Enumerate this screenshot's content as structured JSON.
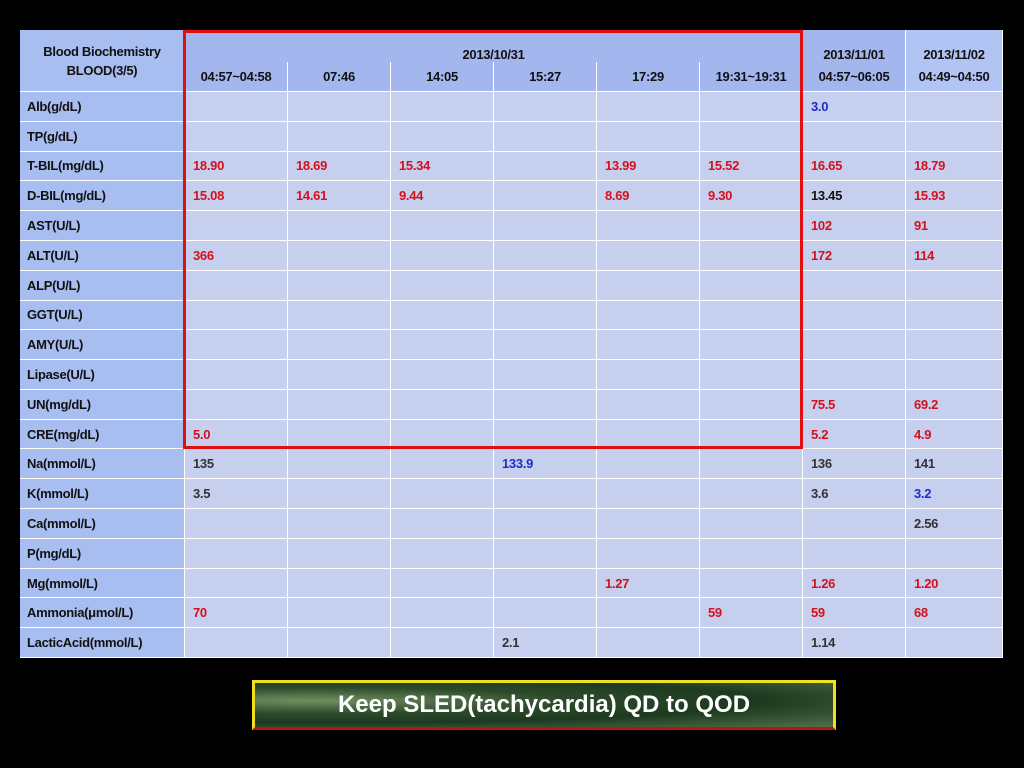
{
  "table": {
    "corner": [
      "Blood Biochemistry",
      "BLOOD(3/5)"
    ],
    "dates": [
      {
        "text": "2013/10/31",
        "span": 6
      },
      {
        "text": "2013/11/01",
        "span": 1
      },
      {
        "text": "2013/11/02",
        "span": 1
      }
    ],
    "times": [
      "04:57~04:58",
      "07:46",
      "14:05",
      "15:27",
      "17:29",
      "19:31~19:31",
      "04:57~06:05",
      "04:49~04:50"
    ],
    "rows": [
      {
        "label": "Alb(g/dL)",
        "cells": [
          null,
          null,
          null,
          null,
          null,
          null,
          {
            "text": "3.0",
            "color": "#1c2fc8"
          },
          null
        ]
      },
      {
        "label": "TP(g/dL)",
        "cells": [
          null,
          null,
          null,
          null,
          null,
          null,
          null,
          null
        ]
      },
      {
        "label": "T-BIL(mg/dL)",
        "cells": [
          {
            "text": "18.90",
            "color": "#d4101c"
          },
          {
            "text": "18.69",
            "color": "#d4101c"
          },
          {
            "text": "15.34",
            "color": "#d4101c"
          },
          null,
          {
            "text": "13.99",
            "color": "#d4101c"
          },
          {
            "text": "15.52",
            "color": "#d4101c"
          },
          {
            "text": "16.65",
            "color": "#d4101c"
          },
          {
            "text": "18.79",
            "color": "#d4101c"
          }
        ]
      },
      {
        "label": "D-BIL(mg/dL)",
        "cells": [
          {
            "text": "15.08",
            "color": "#d4101c"
          },
          {
            "text": "14.61",
            "color": "#d4101c"
          },
          {
            "text": "9.44",
            "color": "#d4101c"
          },
          null,
          {
            "text": "8.69",
            "color": "#d4101c"
          },
          {
            "text": "9.30",
            "color": "#d4101c"
          },
          {
            "text": "13.45",
            "color": "#111111"
          },
          {
            "text": "15.93",
            "color": "#d4101c"
          }
        ]
      },
      {
        "label": "AST(U/L)",
        "cells": [
          null,
          null,
          null,
          null,
          null,
          null,
          {
            "text": "102",
            "color": "#d4101c"
          },
          {
            "text": "91",
            "color": "#d4101c"
          }
        ]
      },
      {
        "label": "ALT(U/L)",
        "cells": [
          {
            "text": "366",
            "color": "#d4101c"
          },
          null,
          null,
          null,
          null,
          null,
          {
            "text": "172",
            "color": "#d4101c"
          },
          {
            "text": "114",
            "color": "#d4101c"
          }
        ]
      },
      {
        "label": "ALP(U/L)",
        "cells": [
          null,
          null,
          null,
          null,
          null,
          null,
          null,
          null
        ]
      },
      {
        "label": "GGT(U/L)",
        "cells": [
          null,
          null,
          null,
          null,
          null,
          null,
          null,
          null
        ]
      },
      {
        "label": "AMY(U/L)",
        "cells": [
          null,
          null,
          null,
          null,
          null,
          null,
          null,
          null
        ]
      },
      {
        "label": "Lipase(U/L)",
        "cells": [
          null,
          null,
          null,
          null,
          null,
          null,
          null,
          null
        ]
      },
      {
        "label": "UN(mg/dL)",
        "cells": [
          null,
          null,
          null,
          null,
          null,
          null,
          {
            "text": "75.5",
            "color": "#d4101c"
          },
          {
            "text": "69.2",
            "color": "#d4101c"
          }
        ]
      },
      {
        "label": "CRE(mg/dL)",
        "cells": [
          {
            "text": "5.0",
            "color": "#d4101c"
          },
          null,
          null,
          null,
          null,
          null,
          {
            "text": "5.2",
            "color": "#d4101c"
          },
          {
            "text": "4.9",
            "color": "#d4101c"
          }
        ]
      },
      {
        "label": "Na(mmol/L)",
        "cells": [
          {
            "text": "135",
            "color": "#333333"
          },
          null,
          null,
          {
            "text": "133.9",
            "color": "#1c2fc8"
          },
          null,
          null,
          {
            "text": "136",
            "color": "#333333"
          },
          {
            "text": "141",
            "color": "#333333"
          }
        ]
      },
      {
        "label": "K(mmol/L)",
        "cells": [
          {
            "text": "3.5",
            "color": "#333333"
          },
          null,
          null,
          null,
          null,
          null,
          {
            "text": "3.6",
            "color": "#333333"
          },
          {
            "text": "3.2",
            "color": "#1c2fc8"
          }
        ]
      },
      {
        "label": "Ca(mmol/L)",
        "cells": [
          null,
          null,
          null,
          null,
          null,
          null,
          null,
          {
            "text": "2.56",
            "color": "#333333"
          }
        ]
      },
      {
        "label": "P(mg/dL)",
        "cells": [
          null,
          null,
          null,
          null,
          null,
          null,
          null,
          null
        ]
      },
      {
        "label": "Mg(mmol/L)",
        "cells": [
          null,
          null,
          null,
          null,
          {
            "text": "1.27",
            "color": "#d4101c"
          },
          null,
          {
            "text": "1.26",
            "color": "#d4101c"
          },
          {
            "text": "1.20",
            "color": "#d4101c"
          }
        ]
      },
      {
        "label": "Ammonia(μmol/L)",
        "cells": [
          {
            "text": "70",
            "color": "#d4101c"
          },
          null,
          null,
          null,
          null,
          {
            "text": "59",
            "color": "#d4101c"
          },
          {
            "text": "59",
            "color": "#d4101c"
          },
          {
            "text": "68",
            "color": "#d4101c"
          }
        ]
      },
      {
        "label": "LacticAcid(mmol/L)",
        "cells": [
          null,
          null,
          null,
          {
            "text": "2.1",
            "color": "#333333"
          },
          null,
          null,
          {
            "text": "1.14",
            "color": "#333333"
          },
          null
        ]
      }
    ]
  },
  "banner": "Keep SLED(tachycardia) QD to QOD"
}
